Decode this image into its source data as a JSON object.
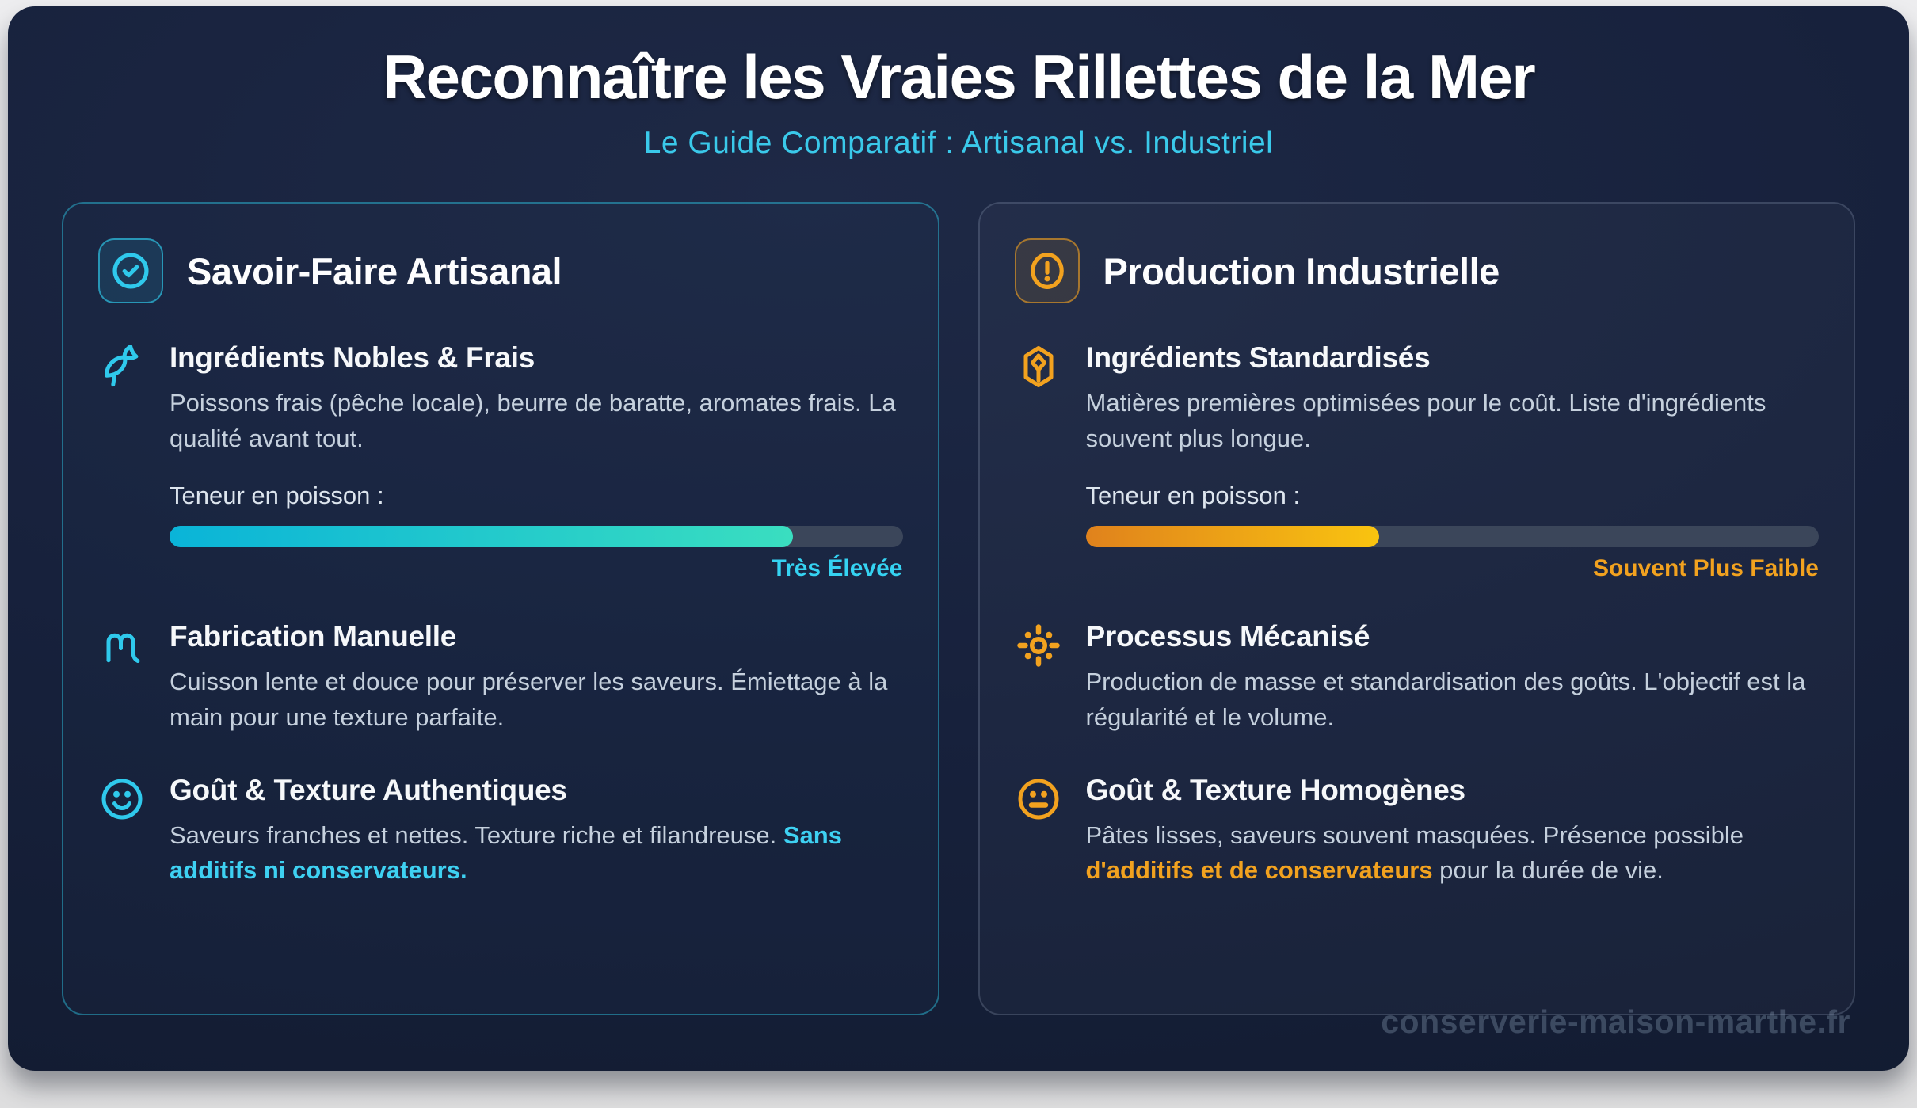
{
  "header": {
    "title": "Reconnaître les Vraies Rillettes de la Mer",
    "subtitle": "Le Guide Comparatif : Artisanal vs. Industriel"
  },
  "watermark": "conserverie-maison-marthe.fr",
  "colors": {
    "accent_cyan": "#2fc9ec",
    "accent_orange": "#f2a21f",
    "bar_track": "#3b465a",
    "bar_cyan_gradient": [
      "#0ab4d8",
      "#3adec0"
    ],
    "bar_orange_gradient": [
      "#e0821c",
      "#f9c410"
    ],
    "panel_bg": "#17213c",
    "page_bg": "#e8e8ea"
  },
  "cards": [
    {
      "title": "Savoir-Faire Artisanal",
      "badge_icon": "circle-check-icon",
      "features": [
        {
          "icon": "fish-icon",
          "heading": "Ingrédients Nobles & Frais",
          "body": "Poissons frais (pêche locale), beurre de baratte, aromates frais. La qualité avant tout.",
          "meter": {
            "label": "Teneur en poisson :",
            "percent": 85,
            "value_label": "Très Élevée"
          }
        },
        {
          "icon": "hand-icon",
          "heading": "Fabrication Manuelle",
          "body": "Cuisson lente et douce pour préserver les saveurs. Émiettage à la main pour une texture parfaite."
        },
        {
          "icon": "smile-icon",
          "heading": "Goût & Texture Authentiques",
          "body": "Saveurs franches et nettes. Texture riche et filandreuse. ",
          "highlight": "Sans additifs ni conservateurs.",
          "suffix": ""
        }
      ]
    },
    {
      "title": "Production Industrielle",
      "badge_icon": "alert-circle-icon",
      "features": [
        {
          "icon": "package-icon",
          "heading": "Ingrédients Standardisés",
          "body": "Matières premières optimisées pour le coût. Liste d'ingrédients souvent plus longue.",
          "meter": {
            "label": "Teneur en poisson :",
            "percent": 40,
            "value_label": "Souvent Plus Faible"
          }
        },
        {
          "icon": "machine-sun-icon",
          "heading": "Processus Mécanisé",
          "body": "Production de masse et standardisation des goûts. L'objectif est la régularité et le volume."
        },
        {
          "icon": "meh-face-icon",
          "heading": "Goût & Texture Homogènes",
          "body": "Pâtes lisses, saveurs souvent masquées. Présence possible ",
          "highlight": "d'additifs et de conservateurs",
          "suffix": " pour la durée de vie."
        }
      ]
    }
  ]
}
